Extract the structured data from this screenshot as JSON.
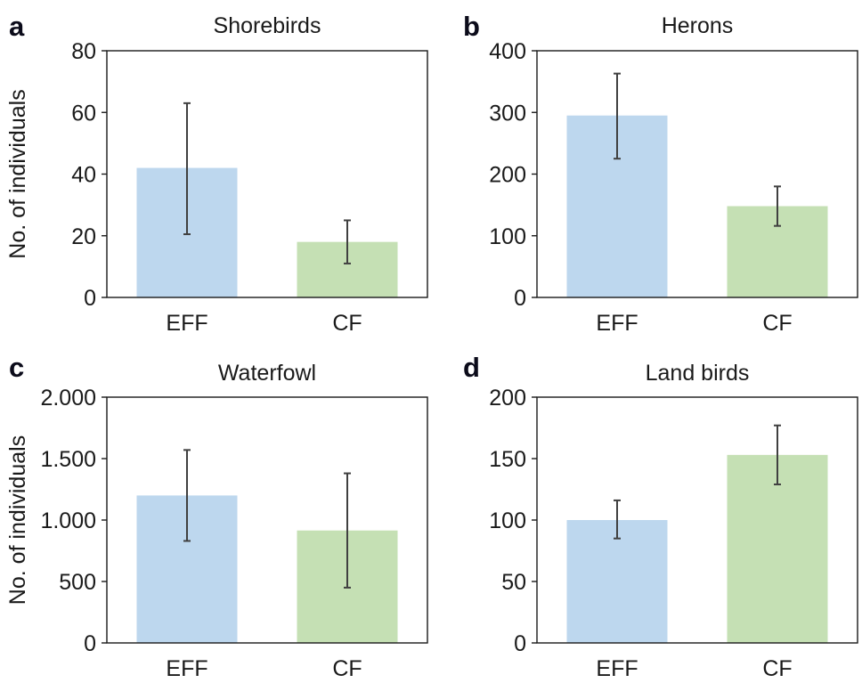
{
  "chart_data": [
    {
      "type": "bar",
      "panel": "a",
      "title": "Shorebirds",
      "ylabel": "No. of individuals",
      "categories": [
        "EFF",
        "CF"
      ],
      "values": [
        42,
        18
      ],
      "error_low": [
        20.5,
        11
      ],
      "error_high": [
        63,
        25
      ],
      "ylim": [
        0,
        80
      ],
      "yticks": [
        0,
        20,
        40,
        60,
        80
      ],
      "ytick_labels": [
        "0",
        "20",
        "40",
        "60",
        "80"
      ],
      "colors": [
        "#bdd7ee",
        "#c5e0b4"
      ],
      "grid": false
    },
    {
      "type": "bar",
      "panel": "b",
      "title": "Herons",
      "ylabel": "",
      "categories": [
        "EFF",
        "CF"
      ],
      "values": [
        295,
        148
      ],
      "error_low": [
        225,
        116
      ],
      "error_high": [
        363,
        180
      ],
      "ylim": [
        0,
        400
      ],
      "yticks": [
        0,
        100,
        200,
        300,
        400
      ],
      "ytick_labels": [
        "0",
        "100",
        "200",
        "300",
        "400"
      ],
      "colors": [
        "#bdd7ee",
        "#c5e0b4"
      ],
      "grid": false
    },
    {
      "type": "bar",
      "panel": "c",
      "title": "Waterfowl",
      "ylabel": "No. of individuals",
      "categories": [
        "EFF",
        "CF"
      ],
      "values": [
        1200,
        915
      ],
      "error_low": [
        830,
        450
      ],
      "error_high": [
        1570,
        1380
      ],
      "ylim": [
        0,
        2000
      ],
      "yticks": [
        0,
        500,
        1000,
        1500,
        2000
      ],
      "ytick_labels": [
        "0",
        "500",
        "1.000",
        "1.500",
        "2.000"
      ],
      "colors": [
        "#bdd7ee",
        "#c5e0b4"
      ],
      "grid": false
    },
    {
      "type": "bar",
      "panel": "d",
      "title": "Land birds",
      "ylabel": "",
      "categories": [
        "EFF",
        "CF"
      ],
      "values": [
        100,
        153
      ],
      "error_low": [
        85,
        129
      ],
      "error_high": [
        116,
        177
      ],
      "ylim": [
        0,
        200
      ],
      "yticks": [
        0,
        50,
        100,
        150,
        200
      ],
      "ytick_labels": [
        "0",
        "50",
        "100",
        "150",
        "200"
      ],
      "colors": [
        "#bdd7ee",
        "#c5e0b4"
      ],
      "grid": false
    }
  ]
}
